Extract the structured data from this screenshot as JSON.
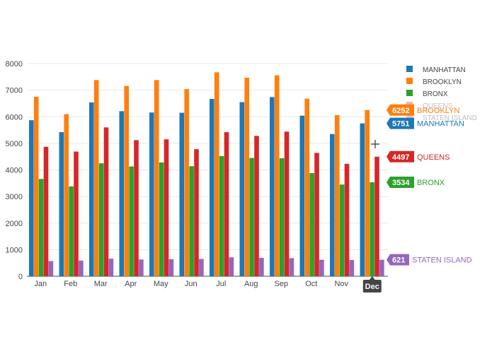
{
  "chart_data": {
    "type": "bar",
    "categories": [
      "Jan",
      "Feb",
      "Mar",
      "Apr",
      "May",
      "Jun",
      "Jul",
      "Aug",
      "Sep",
      "Oct",
      "Nov",
      "Dec"
    ],
    "ylim": [
      0,
      8000
    ],
    "yticks": [
      0,
      1000,
      2000,
      3000,
      4000,
      5000,
      6000,
      7000,
      8000
    ],
    "grid": true,
    "legend": "top-right",
    "series": [
      {
        "name": "MANHATTAN",
        "color": "#1f77b4",
        "values": [
          5870,
          5420,
          6540,
          6210,
          6160,
          6150,
          6670,
          6550,
          6740,
          6040,
          5350,
          5751
        ]
      },
      {
        "name": "BROOKLYN",
        "color": "#ff7f0e",
        "values": [
          6750,
          6100,
          7380,
          7160,
          7380,
          7040,
          7670,
          7470,
          7560,
          6680,
          6060,
          6252
        ]
      },
      {
        "name": "BRONX",
        "color": "#2ca02c",
        "values": [
          3660,
          3380,
          4250,
          4130,
          4280,
          4140,
          4520,
          4450,
          4440,
          3880,
          3450,
          3534
        ]
      },
      {
        "name": "QUEENS",
        "color": "#d62728",
        "values": [
          4870,
          4690,
          5600,
          5120,
          5150,
          4780,
          5420,
          5280,
          5440,
          4640,
          4230,
          4497
        ]
      },
      {
        "name": "STATEN ISLAND",
        "color": "#9467bd",
        "values": [
          570,
          590,
          660,
          630,
          640,
          650,
          710,
          690,
          680,
          620,
          610,
          621
        ]
      }
    ],
    "hover": {
      "category": "Dec",
      "labels": [
        {
          "value": "6252",
          "name": "BROOKLYN"
        },
        {
          "value": "5751",
          "name": "MANHATTAN"
        },
        {
          "value": "4497",
          "name": "QUEENS"
        },
        {
          "value": "3534",
          "name": "BRONX"
        },
        {
          "value": "621",
          "name": "STATEN ISLAND"
        }
      ]
    }
  }
}
